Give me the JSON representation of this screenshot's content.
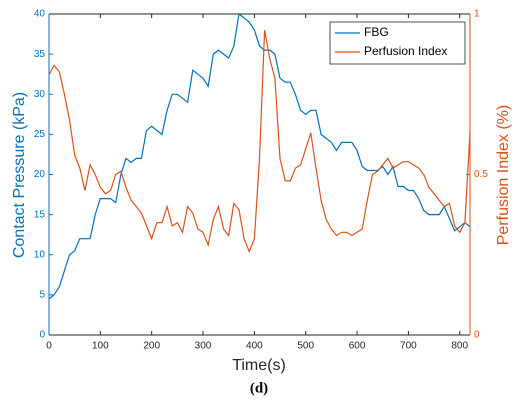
{
  "chart_data": {
    "type": "line",
    "xlabel": "Time(s)",
    "ylabel": "Contact Pressure (kPa)",
    "y2label": "Perfusion Index (%)",
    "caption": "(d)",
    "xlim": [
      0,
      820
    ],
    "xticks": [
      0,
      100,
      200,
      300,
      400,
      500,
      600,
      700,
      800
    ],
    "ylim": [
      0,
      40
    ],
    "yticks": [
      0,
      5,
      10,
      15,
      20,
      25,
      30,
      35,
      40
    ],
    "y2lim": [
      0,
      1
    ],
    "y2ticks": [
      0,
      0.5,
      1
    ],
    "legend": "top-right",
    "x": [
      0,
      10,
      20,
      30,
      40,
      50,
      60,
      70,
      80,
      90,
      100,
      110,
      120,
      130,
      140,
      150,
      160,
      170,
      180,
      190,
      200,
      210,
      220,
      230,
      240,
      250,
      260,
      270,
      280,
      290,
      300,
      310,
      320,
      330,
      340,
      350,
      360,
      370,
      380,
      390,
      400,
      410,
      420,
      430,
      440,
      450,
      460,
      470,
      480,
      490,
      500,
      510,
      520,
      530,
      540,
      550,
      560,
      570,
      580,
      590,
      600,
      610,
      620,
      630,
      640,
      650,
      660,
      670,
      680,
      690,
      700,
      710,
      720,
      730,
      740,
      750,
      760,
      770,
      780,
      790,
      800,
      810,
      820
    ],
    "series": [
      {
        "name": "FBG",
        "color": "#0072bd",
        "axis": "y",
        "values": [
          4.5,
          5,
          6,
          8,
          10,
          10.5,
          12,
          12,
          12,
          15,
          17,
          17,
          17,
          16.5,
          20,
          22,
          21.5,
          22,
          22,
          25.5,
          26,
          25.5,
          25,
          28,
          30,
          30,
          29.5,
          29,
          33,
          32.5,
          32,
          31,
          35,
          35.5,
          35,
          34.5,
          36,
          40,
          39.5,
          39,
          38,
          36,
          35.5,
          35.5,
          35,
          32,
          31.5,
          31.5,
          30,
          28,
          27.5,
          28,
          28,
          25,
          24.5,
          24,
          23,
          24,
          24,
          24,
          23,
          21,
          20.5,
          20.5,
          20.5,
          21,
          20,
          21,
          18.5,
          18.5,
          18,
          18,
          17,
          15.5,
          15,
          15,
          15,
          16,
          14.5,
          13,
          13.5,
          14,
          13.5
        ]
      },
      {
        "name": "Perfusion Index",
        "color": "#d95319",
        "axis": "y2",
        "values": [
          0.81,
          0.84,
          0.82,
          0.75,
          0.67,
          0.56,
          0.52,
          0.45,
          0.53,
          0.5,
          0.46,
          0.44,
          0.45,
          0.5,
          0.51,
          0.46,
          0.42,
          0.4,
          0.38,
          0.34,
          0.3,
          0.35,
          0.35,
          0.4,
          0.34,
          0.35,
          0.32,
          0.4,
          0.38,
          0.33,
          0.32,
          0.28,
          0.36,
          0.4,
          0.33,
          0.31,
          0.41,
          0.39,
          0.3,
          0.26,
          0.3,
          0.55,
          0.95,
          0.86,
          0.8,
          0.55,
          0.48,
          0.48,
          0.52,
          0.53,
          0.58,
          0.63,
          0.52,
          0.42,
          0.36,
          0.33,
          0.31,
          0.32,
          0.32,
          0.31,
          0.32,
          0.33,
          0.42,
          0.5,
          0.51,
          0.53,
          0.55,
          0.52,
          0.53,
          0.54,
          0.54,
          0.53,
          0.52,
          0.5,
          0.46,
          0.44,
          0.42,
          0.4,
          0.41,
          0.34,
          0.32,
          0.35,
          0.63
        ]
      }
    ]
  }
}
